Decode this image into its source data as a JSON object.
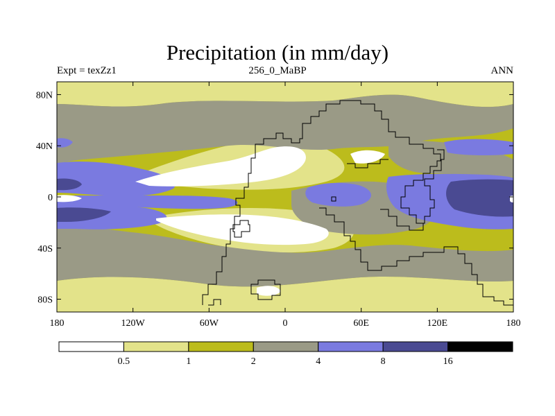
{
  "title": "Precipitation (in mm/day)",
  "subtitle_left": "Expt = texZz1",
  "subtitle_center": "256_0_MaBP",
  "subtitle_right": "ANN",
  "map": {
    "lat_ticks": [
      {
        "label": "80N",
        "lat": 80
      },
      {
        "label": "40N",
        "lat": 40
      },
      {
        "label": "0",
        "lat": 0
      },
      {
        "label": "40S",
        "lat": -40
      },
      {
        "label": "80S",
        "lat": -80
      }
    ],
    "lon_ticks": [
      {
        "label": "180",
        "lon": -180
      },
      {
        "label": "120W",
        "lon": -120
      },
      {
        "label": "60W",
        "lon": -60
      },
      {
        "label": "0",
        "lon": 0
      },
      {
        "label": "60E",
        "lon": 60
      },
      {
        "label": "120E",
        "lon": 120
      },
      {
        "label": "180",
        "lon": 180
      }
    ]
  },
  "colorbar": {
    "colors": [
      "#ffffff",
      "#e3e38a",
      "#bcbc1c",
      "#9a9a86",
      "#7a7ae0",
      "#4a4a92",
      "#000000"
    ],
    "labels": [
      "0.5",
      "1",
      "2",
      "4",
      "8",
      "16"
    ]
  },
  "colors": {
    "white": "#ffffff",
    "light_yellow": "#e3e38a",
    "olive": "#bcbc1c",
    "gray": "#9a9a86",
    "blue": "#7a7ae0",
    "dark_blue": "#4a4a92"
  }
}
